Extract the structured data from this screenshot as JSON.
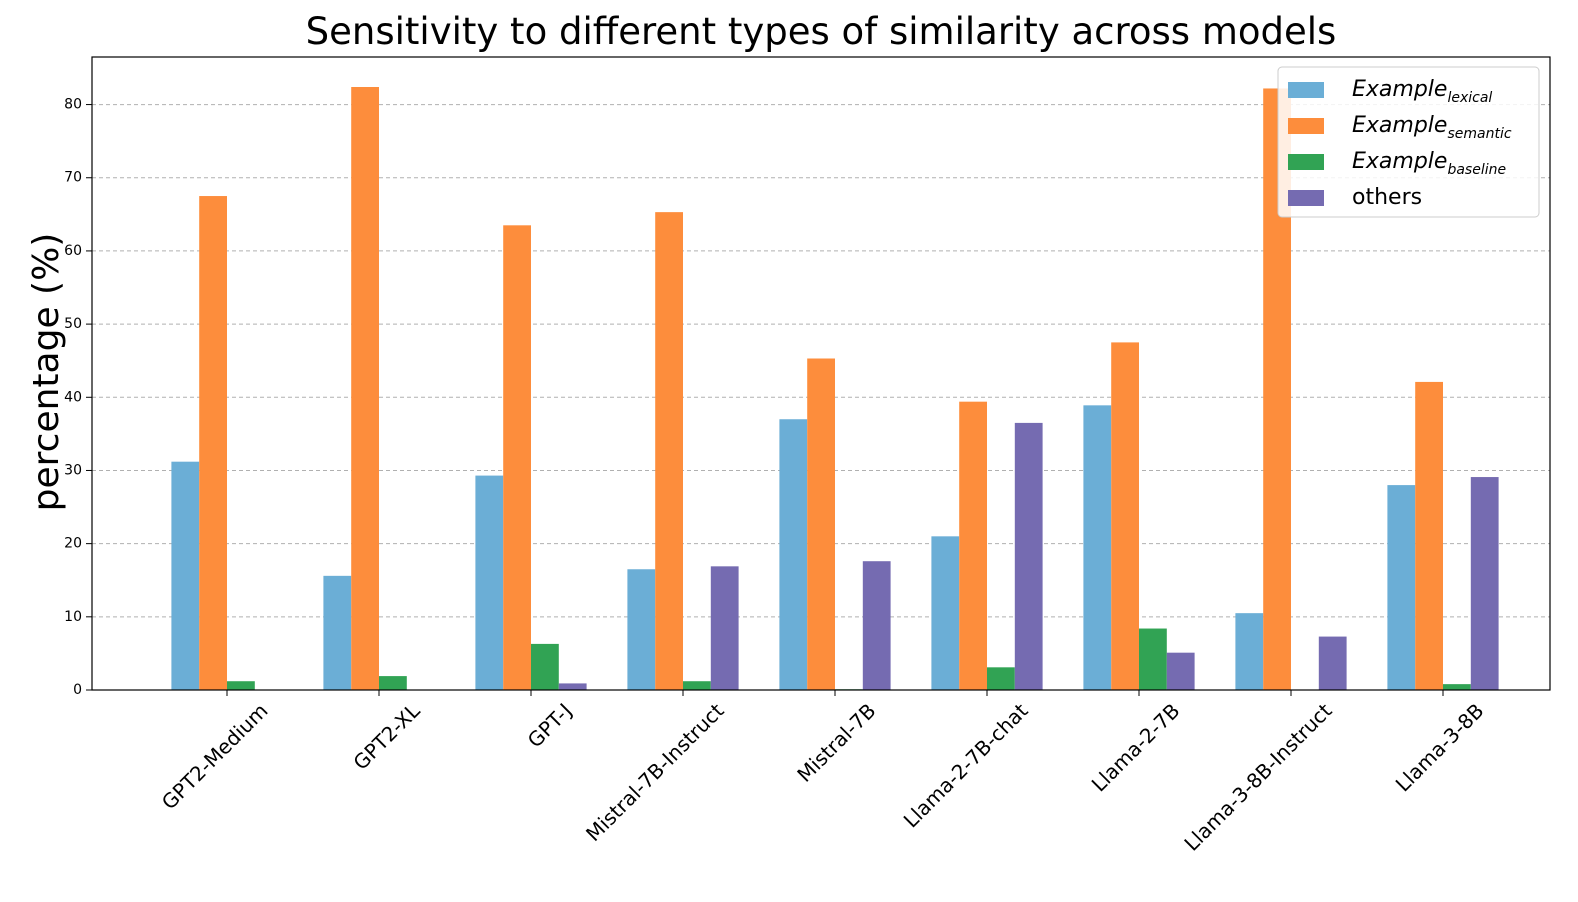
{
  "chart_data": {
    "type": "bar",
    "title": "Sensitivity to different types of similarity across models",
    "xlabel": "",
    "ylabel": "percentage (%)",
    "ylim": [
      0,
      86.5
    ],
    "yticks": [
      0,
      10,
      20,
      30,
      40,
      50,
      60,
      70,
      80
    ],
    "grid": "y, dashed",
    "legend_position": "top-right",
    "categories": [
      "GPT2-Medium",
      "GPT2-XL",
      "GPT-J",
      "Mistral-7B-Instruct",
      "Mistral-7B",
      "Llama-2-7B-chat",
      "Llama-2-7B",
      "Llama-3-8B-Instruct",
      "Llama-3-8B"
    ],
    "series": [
      {
        "name": "Example",
        "subscript": "lexical",
        "color": "#6baed6",
        "values": [
          31.2,
          15.6,
          29.3,
          16.5,
          37.0,
          21.0,
          38.9,
          10.5,
          28.0
        ]
      },
      {
        "name": "Example",
        "subscript": "semantic",
        "color": "#fd8d3c",
        "values": [
          67.5,
          82.4,
          63.5,
          65.3,
          45.3,
          39.4,
          47.5,
          82.2,
          42.1
        ]
      },
      {
        "name": "Example",
        "subscript": "baseline",
        "color": "#31a354",
        "values": [
          1.2,
          1.9,
          6.3,
          1.2,
          0.1,
          3.1,
          8.4,
          0.0,
          0.8
        ]
      },
      {
        "name": "others",
        "subscript": "",
        "color": "#756bb1",
        "values": [
          0.0,
          0.0,
          0.9,
          16.9,
          17.6,
          36.5,
          5.1,
          7.3,
          29.1
        ]
      }
    ]
  }
}
